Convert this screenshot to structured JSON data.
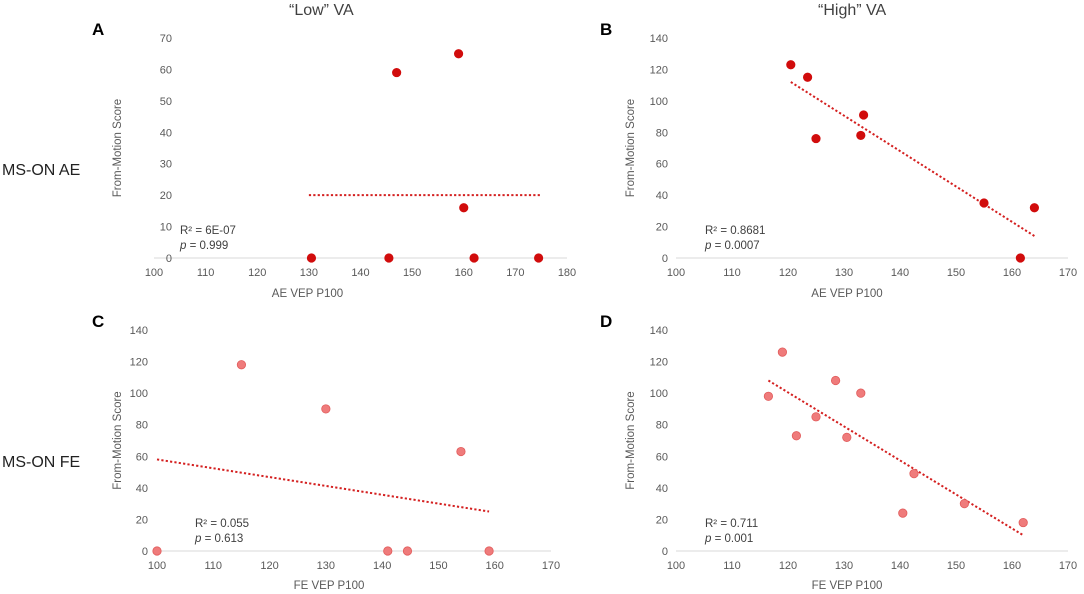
{
  "column_titles": [
    "“Low” VA",
    "“High” VA"
  ],
  "row_labels": [
    "MS-ON AE",
    "MS-ON FE"
  ],
  "panel_letters": [
    "A",
    "B",
    "C",
    "D"
  ],
  "colors": {
    "ae_point": "#d10c0c",
    "fe_point": "#ef7b7b",
    "fe_point_stroke": "#e25c5c",
    "trend": "#d42020"
  },
  "chart_data": [
    {
      "id": "A",
      "type": "scatter",
      "title": "“Low” VA",
      "xlabel": "AE VEP P100",
      "ylabel": "From-Motion Score",
      "xlim": [
        100,
        180
      ],
      "ylim": [
        0,
        70
      ],
      "xticks": [
        100,
        110,
        120,
        130,
        140,
        150,
        160,
        170,
        180
      ],
      "yticks": [
        0,
        10,
        20,
        30,
        40,
        50,
        60,
        70
      ],
      "points": [
        [
          130.5,
          0
        ],
        [
          145.5,
          0
        ],
        [
          147,
          59
        ],
        [
          159,
          65
        ],
        [
          160,
          16
        ],
        [
          162,
          0
        ],
        [
          174.5,
          0
        ]
      ],
      "trend": [
        [
          130,
          20
        ],
        [
          175,
          20
        ]
      ],
      "r2": "R² = 6E-07",
      "p": "= 0.999",
      "p_symbol": "p",
      "point_style": "ae"
    },
    {
      "id": "B",
      "type": "scatter",
      "title": "“High” VA",
      "xlabel": "AE VEP P100",
      "ylabel": "From-Motion Score",
      "xlim": [
        100,
        170
      ],
      "ylim": [
        0,
        140
      ],
      "xticks": [
        100,
        110,
        120,
        130,
        140,
        150,
        160,
        170
      ],
      "yticks": [
        0,
        20,
        40,
        60,
        80,
        100,
        120,
        140
      ],
      "points": [
        [
          120.5,
          123
        ],
        [
          123.5,
          115
        ],
        [
          125,
          76
        ],
        [
          133,
          78
        ],
        [
          133.5,
          91
        ],
        [
          155,
          35
        ],
        [
          161.5,
          0
        ],
        [
          164,
          32
        ]
      ],
      "trend": [
        [
          120.5,
          112
        ],
        [
          164,
          14
        ]
      ],
      "r2": "R² = 0.8681",
      "p": "= 0.0007",
      "p_symbol": "p",
      "point_style": "ae"
    },
    {
      "id": "C",
      "type": "scatter",
      "xlabel": "FE VEP P100",
      "ylabel": "From-Motion Score",
      "xlim": [
        100,
        170
      ],
      "ylim": [
        0,
        140
      ],
      "xticks": [
        100,
        110,
        120,
        130,
        140,
        150,
        160,
        170
      ],
      "yticks": [
        0,
        20,
        40,
        60,
        80,
        100,
        120,
        140
      ],
      "points": [
        [
          100,
          0
        ],
        [
          115,
          118
        ],
        [
          130,
          90
        ],
        [
          141,
          0
        ],
        [
          144.5,
          0
        ],
        [
          154,
          63
        ],
        [
          159,
          0
        ]
      ],
      "trend": [
        [
          100,
          58
        ],
        [
          159,
          25
        ]
      ],
      "r2": "R² = 0.055",
      "p": "= 0.613",
      "p_symbol": "p",
      "point_style": "fe"
    },
    {
      "id": "D",
      "type": "scatter",
      "xlabel": "FE VEP P100",
      "ylabel": "From-Motion Score",
      "xlim": [
        100,
        170
      ],
      "ylim": [
        0,
        140
      ],
      "xticks": [
        100,
        110,
        120,
        130,
        140,
        150,
        160,
        170
      ],
      "yticks": [
        0,
        20,
        40,
        60,
        80,
        100,
        120,
        140
      ],
      "points": [
        [
          116.5,
          98
        ],
        [
          119,
          126
        ],
        [
          121.5,
          73
        ],
        [
          125,
          85
        ],
        [
          128.5,
          108
        ],
        [
          130.5,
          72
        ],
        [
          133,
          100
        ],
        [
          140.5,
          24
        ],
        [
          142.5,
          49
        ],
        [
          151.5,
          30
        ],
        [
          162,
          18
        ]
      ],
      "trend": [
        [
          116.5,
          108
        ],
        [
          162,
          10
        ]
      ],
      "r2": "R² = 0.711",
      "p": "= 0.001",
      "p_symbol": "p",
      "point_style": "fe"
    }
  ]
}
